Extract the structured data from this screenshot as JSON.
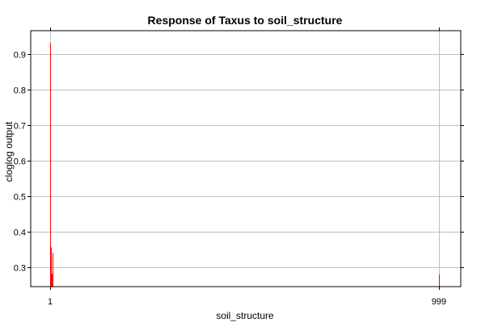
{
  "chart_data": {
    "type": "bar",
    "title": "Response of Taxus to soil_structure",
    "xlabel": "soil_structure",
    "ylabel": "cloglog output",
    "x_ticks": [
      "1",
      "999"
    ],
    "ylim": [
      0.245,
      0.965
    ],
    "y_ticks": [
      0.3,
      0.4,
      0.5,
      0.6,
      0.7,
      0.8,
      0.9
    ],
    "y_tick_labels": [
      "0.3",
      "0.4",
      "0.5",
      "0.6",
      "0.7",
      "0.8",
      "0.9"
    ],
    "grid": true,
    "bar_color": "#ff0000",
    "series": [
      {
        "x": [
          1,
          2,
          3,
          4,
          5,
          6,
          7,
          999
        ],
        "values": [
          0.575,
          0.93,
          0.355,
          0.305,
          0.28,
          0.28,
          0.34,
          0.28
        ]
      }
    ]
  }
}
